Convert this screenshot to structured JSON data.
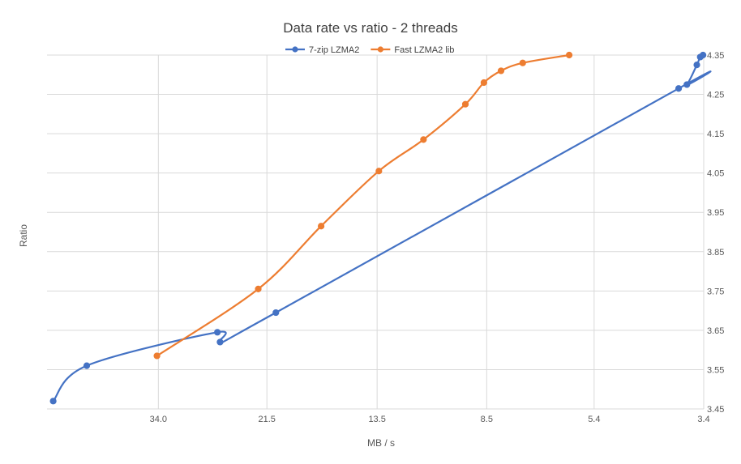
{
  "chart_data": {
    "type": "scatter",
    "title": "Data rate vs ratio - 2 threads",
    "xlabel": "MB / s",
    "ylabel": "Ratio",
    "x_scale": "log",
    "x_reversed": true,
    "xlim": [
      3.4,
      54.4
    ],
    "ylim": [
      3.45,
      4.35
    ],
    "x_ticks": [
      "34.0",
      "21.5",
      "13.5",
      "8.5",
      "5.4",
      "3.4"
    ],
    "y_ticks": [
      "3.45",
      "3.55",
      "3.65",
      "3.75",
      "3.85",
      "3.95",
      "4.05",
      "4.15",
      "4.25",
      "4.35"
    ],
    "grid": true,
    "legend_position": "top",
    "smoothed_lines": true,
    "series": [
      {
        "name": "7-zip LZMA2",
        "color": "#4472c4",
        "points": [
          {
            "x": 53.0,
            "y": 3.47
          },
          {
            "x": 46.0,
            "y": 3.56
          },
          {
            "x": 26.5,
            "y": 3.645
          },
          {
            "x": 26.2,
            "y": 3.62
          },
          {
            "x": 20.7,
            "y": 3.695
          },
          {
            "x": 3.78,
            "y": 4.265
          },
          {
            "x": 3.65,
            "y": 4.275
          },
          {
            "x": 3.5,
            "y": 4.325
          },
          {
            "x": 3.45,
            "y": 4.345
          },
          {
            "x": 3.41,
            "y": 4.35
          }
        ]
      },
      {
        "name": "Fast LZMA2 lib",
        "color": "#ed7d31",
        "points": [
          {
            "x": 34.2,
            "y": 3.585
          },
          {
            "x": 22.3,
            "y": 3.755
          },
          {
            "x": 17.1,
            "y": 3.915
          },
          {
            "x": 13.4,
            "y": 4.055
          },
          {
            "x": 11.1,
            "y": 4.135
          },
          {
            "x": 9.3,
            "y": 4.225
          },
          {
            "x": 8.6,
            "y": 4.28
          },
          {
            "x": 8.0,
            "y": 4.31
          },
          {
            "x": 7.3,
            "y": 4.33
          },
          {
            "x": 6.0,
            "y": 4.35
          }
        ]
      }
    ]
  }
}
